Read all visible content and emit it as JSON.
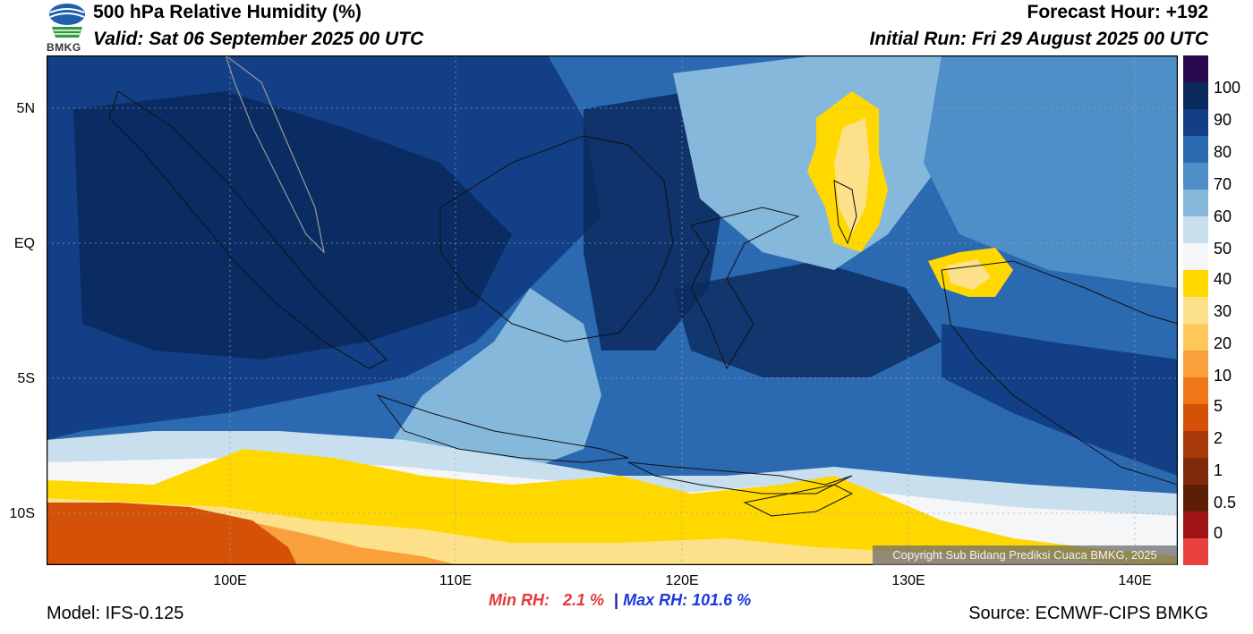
{
  "header": {
    "title": "500 hPa Relative Humidity (%)",
    "valid": "Valid: Sat 06 September 2025 00 UTC",
    "forecast_hour": "Forecast Hour: +192",
    "initial_run": "Initial Run: Fri 29 August 2025 00 UTC"
  },
  "logo": {
    "text": "BMKG",
    "icon": "bmkg-logo-icon"
  },
  "axes": {
    "lat_labels": [
      "5N",
      "EQ",
      "5S",
      "10S"
    ],
    "lon_labels": [
      "100E",
      "110E",
      "120E",
      "130E",
      "140E"
    ]
  },
  "colorbar": {
    "labels": [
      "100",
      "90",
      "80",
      "70",
      "60",
      "50",
      "40",
      "30",
      "20",
      "10",
      "5",
      "2",
      "1",
      "0.5",
      "0"
    ],
    "colors": [
      "#2a0a4e",
      "#0b2a5e",
      "#123f85",
      "#2b69b1",
      "#4f8fc8",
      "#86b8dc",
      "#c9dfee",
      "#f4f6f8",
      "#ffd800",
      "#fde08a",
      "#fcc85a",
      "#f9a03c",
      "#f07818",
      "#d65108",
      "#a83a0a",
      "#7e2a08",
      "#5c1f06",
      "#9e1414",
      "#e8403c"
    ]
  },
  "stats": {
    "min_label": "Min RH:",
    "min_value": "2.1 %",
    "separator": "|",
    "max_label": "Max RH: 101.6 %"
  },
  "copyright": "Copyright Sub Bidang Prediksi Cuaca BMKG, 2025",
  "footer": {
    "model": "Model: IFS-0.125",
    "source": "Source: ECMWF-CIPS BMKG"
  }
}
